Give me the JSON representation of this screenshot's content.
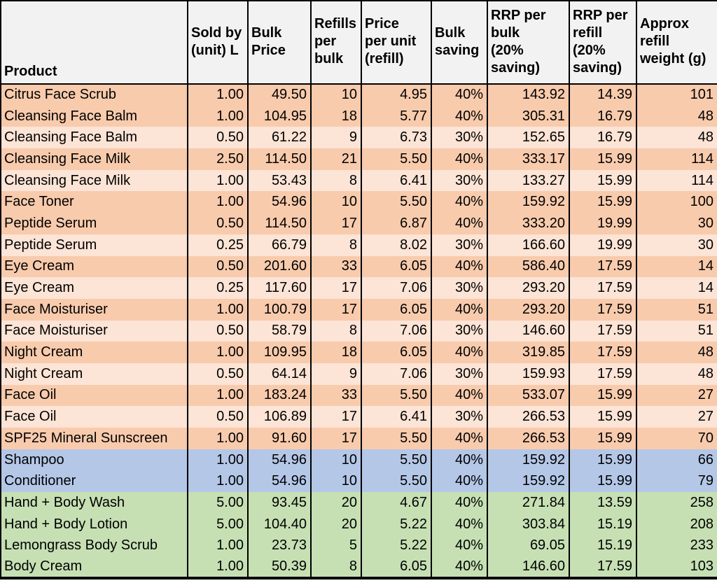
{
  "colors": {
    "orange_dark": "#F8CBAD",
    "orange_light": "#FCE4D6",
    "blue": "#B4C7E7",
    "green": "#C6E0B4",
    "header_bg": "#F2F2F2",
    "border": "#000000",
    "text": "#000000"
  },
  "chart_data": {
    "type": "table",
    "columns": [
      "Product",
      "Sold by (unit) L",
      "Bulk Price",
      "Refills per bulk",
      "Price per unit (refill)",
      "Bulk saving",
      "RRP per bulk (20% saving)",
      "RRP per refill (20% saving)",
      "Approx refill weight (g)"
    ],
    "header_display": [
      "Product",
      "Sold by\n(unit) L",
      "Bulk\nPrice",
      "Refills\nper\nbulk",
      "Price\nper unit\n(refill)",
      "Bulk\nsaving",
      "RRP per\nbulk\n(20%\nsaving)",
      "RRP per\nrefill\n(20%\nsaving)",
      "Approx\nrefill\nweight (g)"
    ],
    "rows": [
      [
        "Citrus Face Scrub",
        "1.00",
        "49.50",
        "10",
        "4.95",
        "40%",
        "143.92",
        "14.39",
        "101"
      ],
      [
        "Cleansing Face Balm",
        "1.00",
        "104.95",
        "18",
        "5.77",
        "40%",
        "305.31",
        "16.79",
        "48"
      ],
      [
        "Cleansing Face Balm",
        "0.50",
        "61.22",
        "9",
        "6.73",
        "30%",
        "152.65",
        "16.79",
        "48"
      ],
      [
        "Cleansing Face Milk",
        "2.50",
        "114.50",
        "21",
        "5.50",
        "40%",
        "333.17",
        "15.99",
        "114"
      ],
      [
        "Cleansing Face Milk",
        "1.00",
        "53.43",
        "8",
        "6.41",
        "30%",
        "133.27",
        "15.99",
        "114"
      ],
      [
        "Face Toner",
        "1.00",
        "54.96",
        "10",
        "5.50",
        "40%",
        "159.92",
        "15.99",
        "100"
      ],
      [
        "Peptide Serum",
        "0.50",
        "114.50",
        "17",
        "6.87",
        "40%",
        "333.20",
        "19.99",
        "30"
      ],
      [
        "Peptide Serum",
        "0.25",
        "66.79",
        "8",
        "8.02",
        "30%",
        "166.60",
        "19.99",
        "30"
      ],
      [
        "Eye Cream",
        "0.50",
        "201.60",
        "33",
        "6.05",
        "40%",
        "586.40",
        "17.59",
        "14"
      ],
      [
        "Eye Cream",
        "0.25",
        "117.60",
        "17",
        "7.06",
        "30%",
        "293.20",
        "17.59",
        "14"
      ],
      [
        "Face Moisturiser",
        "1.00",
        "100.79",
        "17",
        "6.05",
        "40%",
        "293.20",
        "17.59",
        "51"
      ],
      [
        "Face Moisturiser",
        "0.50",
        "58.79",
        "8",
        "7.06",
        "30%",
        "146.60",
        "17.59",
        "51"
      ],
      [
        "Night Cream",
        "1.00",
        "109.95",
        "18",
        "6.05",
        "40%",
        "319.85",
        "17.59",
        "48"
      ],
      [
        "Night Cream",
        "0.50",
        "64.14",
        "9",
        "7.06",
        "30%",
        "159.93",
        "17.59",
        "48"
      ],
      [
        "Face Oil",
        "1.00",
        "183.24",
        "33",
        "5.50",
        "40%",
        "533.07",
        "15.99",
        "27"
      ],
      [
        "Face Oil",
        "0.50",
        "106.89",
        "17",
        "6.41",
        "30%",
        "266.53",
        "15.99",
        "27"
      ],
      [
        "SPF25 Mineral Sunscreen",
        "1.00",
        "91.60",
        "17",
        "5.50",
        "40%",
        "266.53",
        "15.99",
        "70"
      ],
      [
        "Shampoo",
        "1.00",
        "54.96",
        "10",
        "5.50",
        "40%",
        "159.92",
        "15.99",
        "66"
      ],
      [
        "Conditioner",
        "1.00",
        "54.96",
        "10",
        "5.50",
        "40%",
        "159.92",
        "15.99",
        "79"
      ],
      [
        "Hand + Body Wash",
        "5.00",
        "93.45",
        "20",
        "4.67",
        "40%",
        "271.84",
        "13.59",
        "258"
      ],
      [
        "Hand + Body Lotion",
        "5.00",
        "104.40",
        "20",
        "5.22",
        "40%",
        "303.84",
        "15.19",
        "208"
      ],
      [
        "Lemongrass Body Scrub",
        "1.00",
        "23.73",
        "5",
        "5.22",
        "40%",
        "69.05",
        "15.19",
        "233"
      ],
      [
        "Body Cream",
        "1.00",
        "50.39",
        "8",
        "6.05",
        "40%",
        "146.60",
        "17.59",
        "103"
      ]
    ],
    "row_colors": [
      "orange_dark",
      "orange_dark",
      "orange_light",
      "orange_dark",
      "orange_light",
      "orange_dark",
      "orange_dark",
      "orange_light",
      "orange_dark",
      "orange_light",
      "orange_dark",
      "orange_light",
      "orange_dark",
      "orange_light",
      "orange_dark",
      "orange_light",
      "orange_dark",
      "blue",
      "blue",
      "green",
      "green",
      "green",
      "green"
    ]
  }
}
